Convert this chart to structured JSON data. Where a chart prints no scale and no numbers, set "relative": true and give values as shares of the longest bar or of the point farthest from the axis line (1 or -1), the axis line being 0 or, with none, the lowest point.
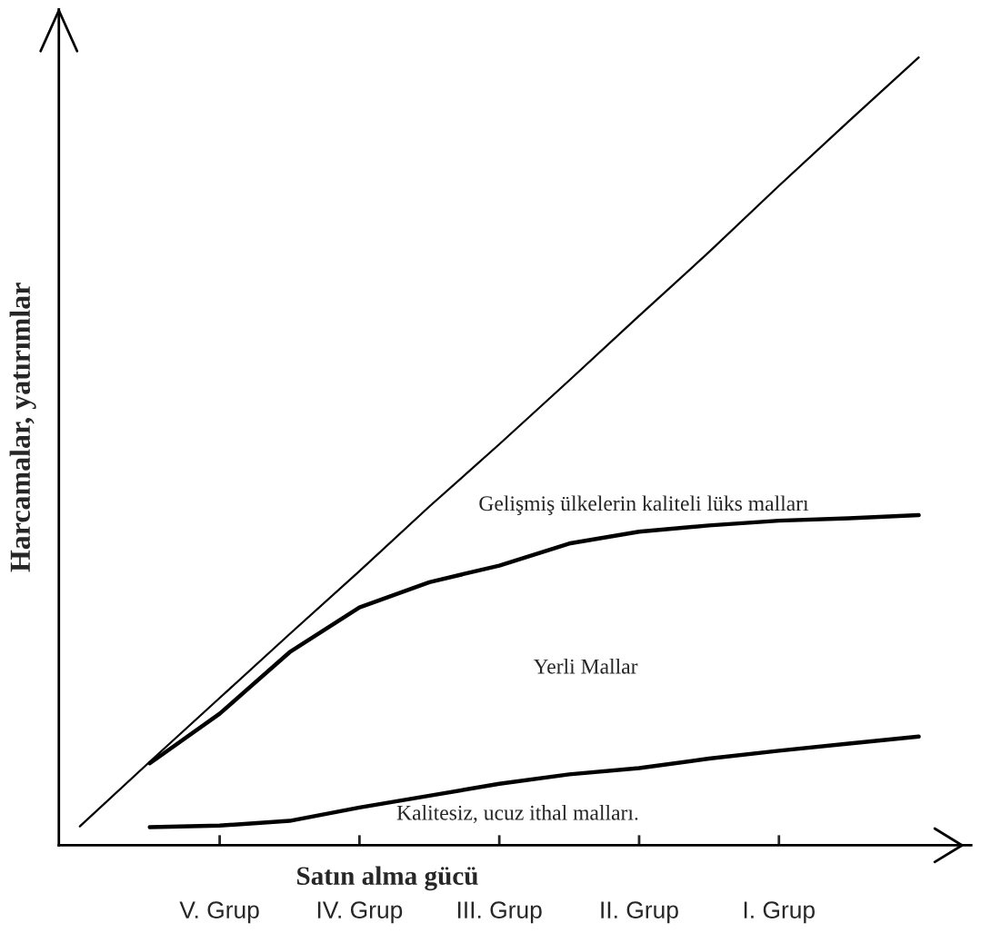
{
  "chart_data": {
    "type": "line",
    "relative": true,
    "xlabel": "Satın alma gücü",
    "ylabel": "Harcamalar, yatırımlar",
    "categories": [
      null,
      null,
      "V. Grup",
      null,
      "IV. Grup",
      null,
      "III. Grup",
      null,
      "II. Grup",
      null,
      "I. Grup",
      null,
      null
    ],
    "series": [
      {
        "color": "#000000",
        "values": [
          0.024,
          0.106,
          0.187,
          0.268,
          0.348,
          0.43,
          0.509,
          0.59,
          0.672,
          0.753,
          0.837,
          0.919,
          1
        ]
      },
      {
        "color": "#000000",
        "values": [
          null,
          0.104,
          0.167,
          0.245,
          0.302,
          0.334,
          0.355,
          0.383,
          0.398,
          0.406,
          0.412,
          0.415,
          0.419
        ]
      },
      {
        "color": "#000000",
        "values": [
          null,
          0.023,
          0.025,
          0.031,
          0.048,
          0.063,
          0.078,
          0.09,
          0.098,
          0.11,
          0.12,
          0.129,
          0.138
        ]
      }
    ],
    "annotations": [
      "Gelişmiş ülkelerin kaliteli lüks malları",
      "Yerli Mallar",
      "Kalitesiz, ucuz ithal malları."
    ],
    "grid": false,
    "legend": false,
    "marker": "none",
    "line_style": "solid"
  }
}
